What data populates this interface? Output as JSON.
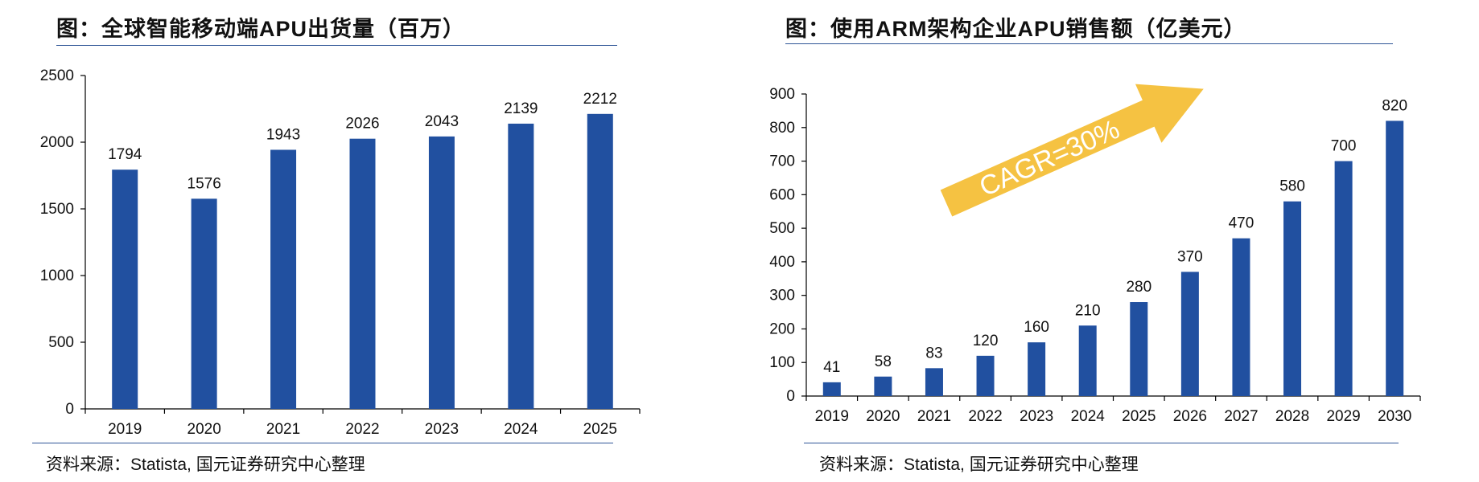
{
  "charts": [
    {
      "title": "图：全球智能移动端APU出货量（百万）",
      "source": "资料来源：Statista, 国元证券研究中心整理"
    },
    {
      "title": "图：使用ARM架构企业APU销售额（亿美元）",
      "source": "资料来源：Statista, 国元证券研究中心整理",
      "annotation": "CAGR=30%"
    }
  ],
  "colors": {
    "bar": "#2150a0",
    "arrow": "#f5c242",
    "rule": "#2f5597",
    "axis": "#000000"
  },
  "chart_data": [
    {
      "type": "bar",
      "title": "图：全球智能移动端APU出货量（百万）",
      "categories": [
        "2019",
        "2020",
        "2021",
        "2022",
        "2023",
        "2024",
        "2025"
      ],
      "values": [
        1794,
        1576,
        1943,
        2026,
        2043,
        2139,
        2212
      ],
      "data_labels": true,
      "ylim": [
        0,
        2500
      ],
      "yticks": [
        0,
        500,
        1000,
        1500,
        2000,
        2500
      ],
      "grid": false,
      "legend": "none"
    },
    {
      "type": "bar",
      "title": "图：使用ARM架构企业APU销售额（亿美元）",
      "categories": [
        "2019",
        "2020",
        "2021",
        "2022",
        "2023",
        "2024",
        "2025",
        "2026",
        "2027",
        "2028",
        "2029",
        "2030"
      ],
      "values": [
        41,
        58,
        83,
        120,
        160,
        210,
        280,
        370,
        470,
        580,
        700,
        820
      ],
      "data_labels": true,
      "ylim": [
        0,
        900
      ],
      "yticks": [
        0,
        100,
        200,
        300,
        400,
        500,
        600,
        700,
        800,
        900
      ],
      "annotations": [
        "CAGR=30%"
      ],
      "grid": false,
      "legend": "none"
    }
  ]
}
